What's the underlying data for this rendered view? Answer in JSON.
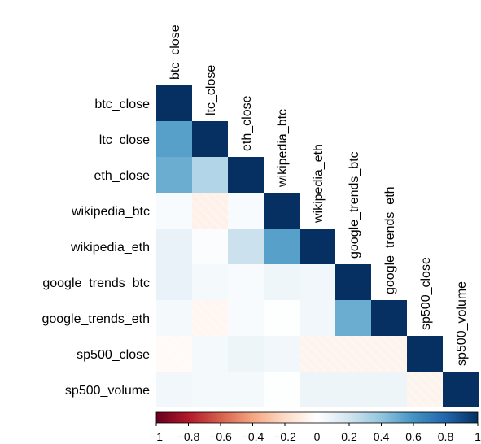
{
  "chart_data": {
    "type": "heatmap",
    "variables": [
      "btc_close",
      "ltc_close",
      "eth_close",
      "wikipedia_btc",
      "wikipedia_eth",
      "google_trends_btc",
      "google_trends_eth",
      "sp500_close",
      "sp500_volume"
    ],
    "values": [
      [
        1.0
      ],
      [
        0.55,
        1.0
      ],
      [
        0.5,
        0.3,
        1.0
      ],
      [
        0.03,
        -0.08,
        0.03,
        1.0
      ],
      [
        0.1,
        0.02,
        0.22,
        0.55,
        1.0
      ],
      [
        0.1,
        0.05,
        0.03,
        0.07,
        0.06,
        1.0
      ],
      [
        0.05,
        -0.05,
        0.03,
        0.01,
        0.06,
        0.5,
        1.0
      ],
      [
        -0.03,
        0.05,
        0.08,
        0.06,
        -0.06,
        -0.06,
        -0.06,
        1.0
      ],
      [
        0.06,
        0.05,
        0.05,
        0.01,
        0.08,
        0.08,
        0.08,
        -0.06,
        1.0
      ]
    ],
    "color_scale": {
      "min": -1,
      "max": 1,
      "ticks": [
        "−1",
        "−0.8",
        "−0.6",
        "−0.4",
        "−0.2",
        "0",
        "0.2",
        "0.4",
        "0.6",
        "0.8",
        "1"
      ],
      "low_color": "#67001f",
      "mid_color": "#ffffff",
      "high_color": "#053061"
    },
    "layout": "lower-triangle with diagonal labels",
    "legend": "bottom colorbar"
  }
}
